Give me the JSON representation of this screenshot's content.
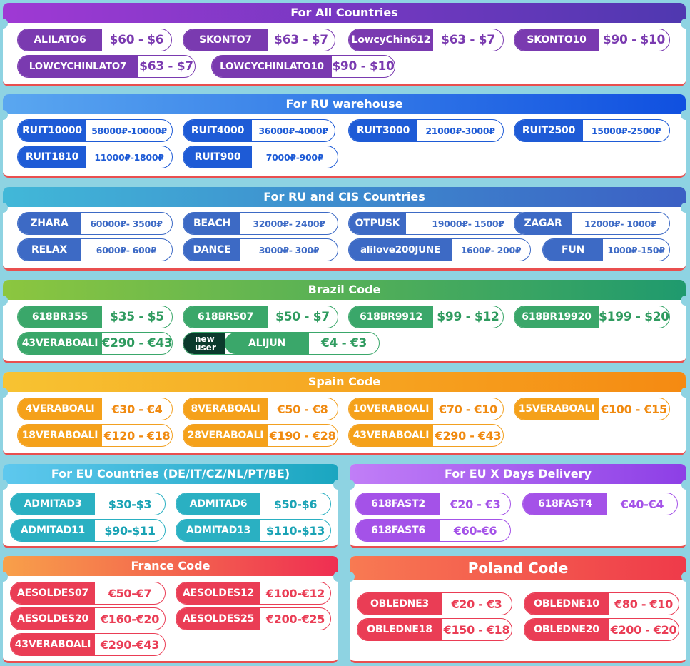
{
  "sections": [
    {
      "key": "all",
      "title": "For All Countries",
      "theme": "purple",
      "header_gradient": [
        "#9f39d4",
        "#4f38b0"
      ],
      "coupons": [
        {
          "code": "ALILATO6",
          "price": "$60 - $6"
        },
        {
          "code": "SKONTO7",
          "price": "$63 - $7"
        },
        {
          "code": "LowcyChin612",
          "price": "$63 - $7"
        },
        {
          "code": "SKONTO10",
          "price": "$90 - $10"
        },
        {
          "code": "LOWCYCHINLATO7",
          "price": "$63 - $7"
        },
        {
          "code": "LOWCYCHINLATO10",
          "price": "$90 - $10"
        }
      ]
    },
    {
      "key": "ru",
      "title": "For RU warehouse",
      "theme": "blue",
      "header_gradient": [
        "#5aa7f0",
        "#1050e0"
      ],
      "coupons": [
        {
          "code": "RUIT10000",
          "price": "58000₽-10000₽"
        },
        {
          "code": "RUIT4000",
          "price": "36000₽-4000₽"
        },
        {
          "code": "RUIT3000",
          "price": "21000₽-3000₽"
        },
        {
          "code": "RUIT2500",
          "price": "15000₽-2500₽"
        },
        {
          "code": "RUIT1810",
          "price": "11000₽-1800₽"
        },
        {
          "code": "RUIT900",
          "price": "7000₽-900₽"
        }
      ]
    },
    {
      "key": "cis",
      "title": "For RU and CIS Countries",
      "theme": "rublue",
      "header_gradient": [
        "#41b8d8",
        "#3b5fc4"
      ],
      "coupons": [
        {
          "code": "ZHARA",
          "price": "60000₽- 3500₽"
        },
        {
          "code": "BEACH",
          "price": "32000₽- 2400₽"
        },
        {
          "code": "OTPUSK",
          "price": "19000₽- 1500₽"
        },
        {
          "code": "ZAGAR",
          "price": "12000₽- 1000₽"
        },
        {
          "code": "RELAX",
          "price": "6000₽- 600₽"
        },
        {
          "code": "DANCE",
          "price": "3000₽- 300₽"
        },
        {
          "code": "alilove200JUNE",
          "price": "1600₽- 200₽"
        },
        {
          "code": "FUN",
          "price": "1000₽-150₽"
        }
      ]
    },
    {
      "key": "brazil",
      "title": "Brazil Code",
      "theme": "green",
      "header_gradient": [
        "#8cc63f",
        "#1f9a6e"
      ],
      "coupons": [
        {
          "code": "618BR355",
          "price": "$35 - $5"
        },
        {
          "code": "618BR507",
          "price": "$50 - $7"
        },
        {
          "code": "618BR9912",
          "price": "$99 - $12"
        },
        {
          "code": "618BR19920",
          "price": "$199 - $20"
        },
        {
          "code": "43VERABOALI",
          "price": "€290 - €43"
        },
        {
          "code": "ALIJUN",
          "price": "€4 - €3",
          "tag": [
            "new",
            "user"
          ]
        }
      ]
    },
    {
      "key": "spain",
      "title": "Spain Code",
      "theme": "orange",
      "header_gradient": [
        "#f7c332",
        "#f58a12"
      ],
      "coupons": [
        {
          "code": "4VERABOALI",
          "price": "€30 - €4"
        },
        {
          "code": "8VERABOALI",
          "price": "€50 - €8"
        },
        {
          "code": "10VERABOALI",
          "price": "€70 - €10"
        },
        {
          "code": "15VERABOALI",
          "price": "€100 - €15"
        },
        {
          "code": "18VERABOALI",
          "price": "€120 - €18"
        },
        {
          "code": "28VERABOALI",
          "price": "€190 - €28"
        },
        {
          "code": "43VERABOALI",
          "price": "€290 - €43"
        }
      ]
    },
    {
      "key": "eu",
      "title": "For EU Countries (DE/IT/CZ/NL/PT/BE)",
      "theme": "teal",
      "header_gradient": [
        "#5ec8ee",
        "#1aa6c0"
      ],
      "coupons": [
        {
          "code": "ADMITAD3",
          "price": "$30-$3"
        },
        {
          "code": "ADMITAD6",
          "price": "$50-$6"
        },
        {
          "code": "ADMITAD11",
          "price": "$90-$11"
        },
        {
          "code": "ADMITAD13",
          "price": "$110-$13"
        }
      ]
    },
    {
      "key": "eux",
      "title": "For EU X Days Delivery",
      "theme": "violet",
      "header_gradient": [
        "#c17ef7",
        "#8d3fe6"
      ],
      "coupons": [
        {
          "code": "618FAST2",
          "price": "€20 - €3"
        },
        {
          "code": "618FAST4",
          "price": "€40-€4"
        },
        {
          "code": "618FAST6",
          "price": "€60-€6"
        }
      ]
    },
    {
      "key": "france",
      "title": "France Code",
      "theme": "red",
      "header_gradient": [
        "#f8a04a",
        "#ef2e52"
      ],
      "coupons": [
        {
          "code": "AESOLDES07",
          "price": "€50-€7"
        },
        {
          "code": "AESOLDES12",
          "price": "€100-€12"
        },
        {
          "code": "AESOLDES20",
          "price": "€160-€20"
        },
        {
          "code": "AESOLDES25",
          "price": "€200-€25"
        },
        {
          "code": "43VERABOALI",
          "price": "€290-€43"
        }
      ]
    },
    {
      "key": "poland",
      "title": "Poland Code",
      "theme": "red",
      "header_gradient": [
        "#f87a52",
        "#ef3a4a"
      ],
      "coupons": [
        {
          "code": "OBLEDNE3",
          "price": "€20 - €3"
        },
        {
          "code": "OBLEDNE10",
          "price": "€80 - €10"
        },
        {
          "code": "OBLEDNE18",
          "price": "€150 - €18"
        },
        {
          "code": "OBLEDNE20",
          "price": "€200 - €20"
        }
      ]
    }
  ]
}
